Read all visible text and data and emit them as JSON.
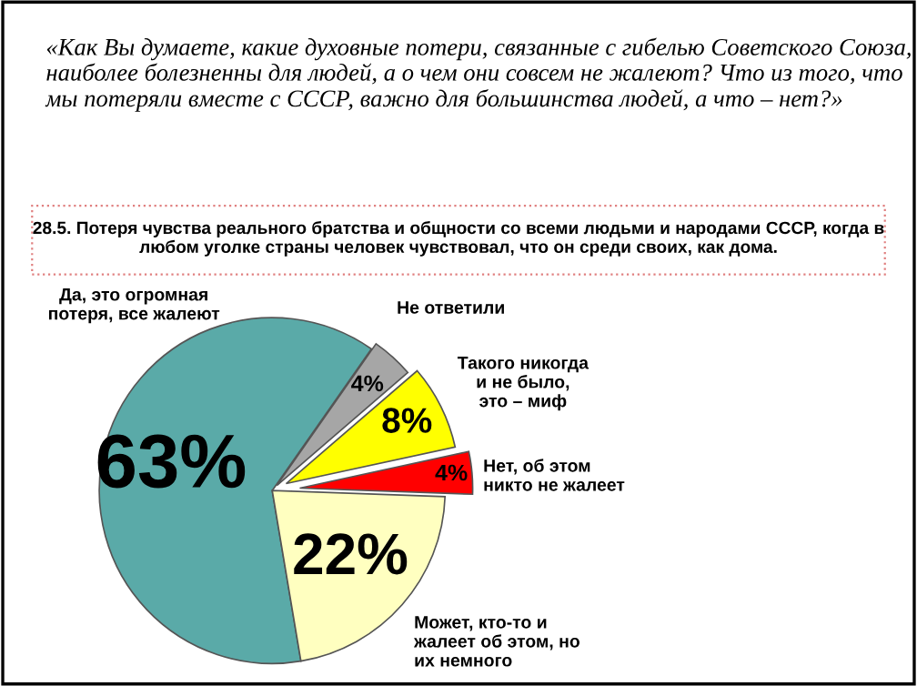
{
  "chart_data": {
    "type": "pie",
    "title": "«Как Вы думаете, какие духовные потери, связанные с гибелью Советского Союза, наиболее болезненны для людей, а о чем они совсем не жалеют? Что из того, что мы потеряли вместе с СССР, важно для большинства людей, а что – нет?»",
    "subtitle": "28.5. Потеря чувства реального братства и общности со всеми людьми и народами СССР, когда в любом уголке страны человек чувствовал, что он среди своих, как дома.",
    "categories": [
      "Да, это огромная\nпотеря, все жалеют",
      "Может, кто-то и\nжалеет об этом, но\nих немного",
      "Нет, об этом\nникто не жалеет",
      "Такого никогда\nи не было,\nэто – миф",
      "Не ответили"
    ],
    "values": [
      63,
      22,
      4,
      8,
      4
    ],
    "value_labels": [
      "63%",
      "22%",
      "4%",
      "8%",
      "4%"
    ],
    "colors": [
      "#5aaaa8",
      "#ffffc0",
      "#ff0000",
      "#ffff00",
      "#a6a6a6"
    ],
    "legend": false
  }
}
